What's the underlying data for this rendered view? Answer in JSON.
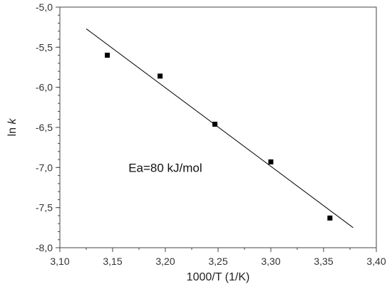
{
  "chart_data": {
    "type": "scatter",
    "title": "",
    "xlabel": "1000/T (1/K)",
    "ylabel_main": "ln ",
    "ylabel_italic": "k",
    "xlim": [
      3.1,
      3.4
    ],
    "ylim": [
      -8.0,
      -5.0
    ],
    "x_ticks": [
      3.1,
      3.15,
      3.2,
      3.25,
      3.3,
      3.35,
      3.4
    ],
    "x_tick_labels": [
      "3,10",
      "3,15",
      "3,20",
      "3,25",
      "3,30",
      "3,35",
      "3,40"
    ],
    "y_ticks": [
      -5.0,
      -5.5,
      -6.0,
      -6.5,
      -7.0,
      -7.5,
      -8.0
    ],
    "y_tick_labels": [
      "-5,0",
      "-5,5",
      "-6,0",
      "-6,5",
      "-7,0",
      "-7,5",
      "-8,0"
    ],
    "x_minor_step": 0.025,
    "y_minor_step": 0.1,
    "grid": false,
    "legend": "none",
    "marker": "square",
    "marker_color": "#000000",
    "line_color": "#000000",
    "points": [
      {
        "x": 3.145,
        "y": -5.6
      },
      {
        "x": 3.195,
        "y": -5.86
      },
      {
        "x": 3.247,
        "y": -6.46
      },
      {
        "x": 3.3,
        "y": -6.93
      },
      {
        "x": 3.356,
        "y": -7.63
      }
    ],
    "fit_line": {
      "x": [
        3.125,
        3.378
      ],
      "y": [
        -5.27,
        -7.75
      ]
    },
    "annotation": {
      "text": "Ea=80 kJ/mol",
      "x": 3.165,
      "y": -7.0
    }
  }
}
